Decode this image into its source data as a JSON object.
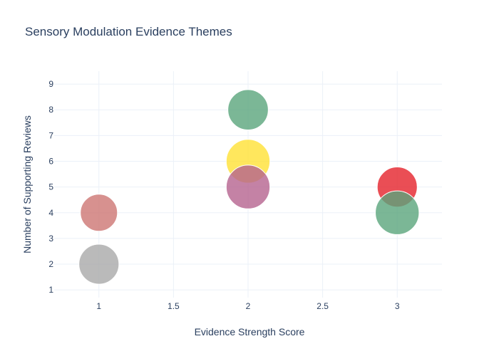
{
  "chart_data": {
    "type": "scatter",
    "title": "Sensory Modulation Evidence Themes",
    "xlabel": "Evidence Strength Score",
    "ylabel": "Number of Supporting Reviews",
    "xlim": [
      0.7,
      3.3
    ],
    "ylim": [
      0.7,
      9.5
    ],
    "x_ticks": [
      1,
      1.5,
      2,
      2.5,
      3
    ],
    "x_tick_labels": [
      "1",
      "1.5",
      "2",
      "2.5",
      "3"
    ],
    "y_ticks": [
      1,
      2,
      3,
      4,
      5,
      6,
      7,
      8,
      9
    ],
    "y_tick_labels": [
      "1",
      "2",
      "3",
      "4",
      "5",
      "6",
      "7",
      "8",
      "9"
    ],
    "grid": true,
    "legend": false,
    "points": [
      {
        "x": 1,
        "y": 4,
        "size": 1.0,
        "color": "#cd7573",
        "opacity": 0.8
      },
      {
        "x": 1,
        "y": 2,
        "size": 1.08,
        "color": "#a9a9a9",
        "opacity": 0.8
      },
      {
        "x": 2,
        "y": 8,
        "size": 1.09,
        "color": "#5aa57c",
        "opacity": 0.8
      },
      {
        "x": 2,
        "y": 6,
        "size": 1.18,
        "color": "#ffe135",
        "opacity": 0.8
      },
      {
        "x": 2,
        "y": 5,
        "size": 1.18,
        "color": "#b5638f",
        "opacity": 0.8
      },
      {
        "x": 3,
        "y": 5,
        "size": 1.08,
        "color": "#e5222a",
        "opacity": 0.8
      },
      {
        "x": 3,
        "y": 4,
        "size": 1.18,
        "color": "#5aa57c",
        "opacity": 0.8
      }
    ]
  }
}
